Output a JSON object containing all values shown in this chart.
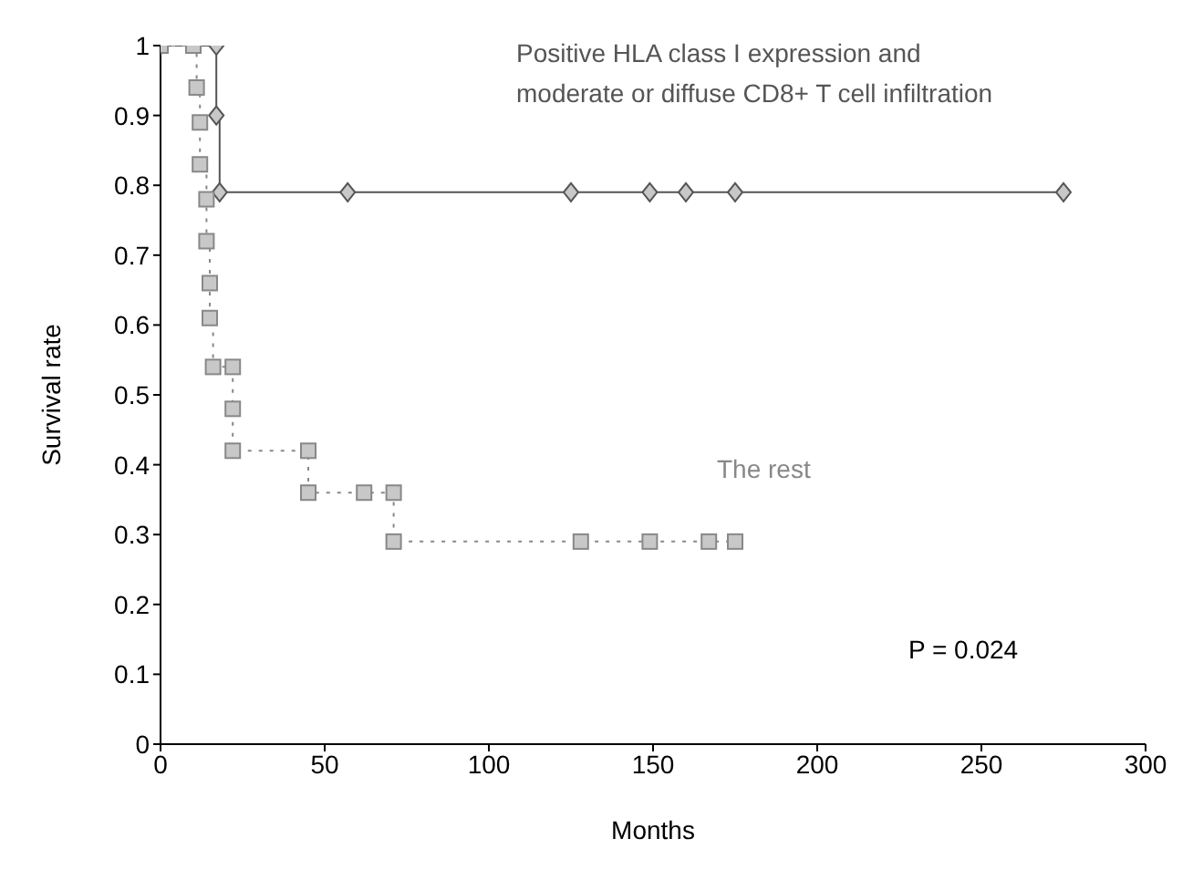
{
  "chart_data": {
    "type": "step",
    "xlabel": "Months",
    "ylabel": "Survival rate",
    "xlim": [
      0,
      300
    ],
    "xticks": [
      0,
      50,
      100,
      150,
      200,
      250,
      300
    ],
    "ylim": [
      0,
      1
    ],
    "yticks": [
      0,
      0.1,
      0.2,
      0.3,
      0.4,
      0.5,
      0.6,
      0.7,
      0.8,
      0.9,
      1
    ],
    "series": [
      {
        "name": "Positive HLA class I expression and moderate or diffuse CD8+ T cell infiltration",
        "color": "#555555",
        "marker": "diamond",
        "line_style": "solid",
        "x": [
          0,
          17,
          17,
          18,
          57,
          125,
          149,
          160,
          175,
          275
        ],
        "values": [
          1,
          1,
          0.9,
          0.79,
          0.79,
          0.79,
          0.79,
          0.79,
          0.79,
          0.79
        ]
      },
      {
        "name": "The rest",
        "color": "#888888",
        "marker": "square",
        "line_style": "dotted",
        "x": [
          0,
          10,
          11,
          12,
          12,
          14,
          14,
          15,
          15,
          16,
          22,
          22,
          22,
          45,
          45,
          62,
          71,
          71,
          128,
          149,
          167,
          175
        ],
        "values": [
          1,
          1,
          0.94,
          0.89,
          0.83,
          0.78,
          0.72,
          0.66,
          0.61,
          0.54,
          0.54,
          0.48,
          0.42,
          0.42,
          0.36,
          0.36,
          0.36,
          0.29,
          0.29,
          0.29,
          0.29,
          0.29
        ]
      }
    ],
    "annotations": [
      "P = 0.024"
    ]
  }
}
